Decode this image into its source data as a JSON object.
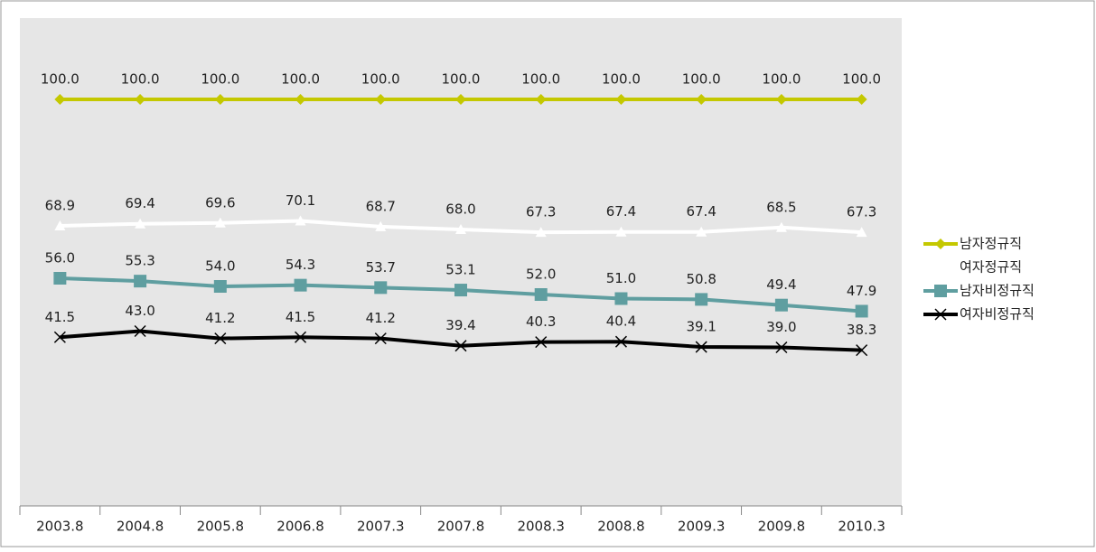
{
  "chart_data": {
    "type": "line",
    "categories": [
      "2003.8",
      "2004.8",
      "2005.8",
      "2006.8",
      "2007.3",
      "2007.8",
      "2008.3",
      "2008.8",
      "2009.3",
      "2009.8",
      "2010.3"
    ],
    "ylim": [
      0,
      120
    ],
    "series": [
      {
        "name": "남자정규직",
        "color": "#c4c800",
        "marker": "diamond",
        "values": [
          100,
          100,
          100,
          100,
          100,
          100,
          100,
          100,
          100,
          100,
          100
        ],
        "value_labels": [
          "100.0",
          "100.0",
          "100.0",
          "100.0",
          "100.0",
          "100.0",
          "100.0",
          "100.0",
          "100.0",
          "100.0",
          "100.0"
        ]
      },
      {
        "name": "여자정규직",
        "color": "#ffffff",
        "marker": "triangle",
        "values": [
          68.9,
          69.4,
          69.6,
          70.1,
          68.7,
          68,
          67.3,
          67.4,
          67.4,
          68.5,
          67.3
        ],
        "value_labels": [
          "68.9",
          "69.4",
          "69.6",
          "70.1",
          "68.7",
          "68.0",
          "67.3",
          "67.4",
          "67.4",
          "68.5",
          "67.3"
        ]
      },
      {
        "name": "남자비정규직",
        "color": "#5f9ea0",
        "marker": "square",
        "values": [
          56,
          55.3,
          54,
          54.3,
          53.7,
          53.1,
          52,
          51,
          50.8,
          49.4,
          47.9
        ],
        "value_labels": [
          "56.0",
          "55.3",
          "54.0",
          "54.3",
          "53.7",
          "53.1",
          "52.0",
          "51.0",
          "50.8",
          "49.4",
          "47.9"
        ]
      },
      {
        "name": "여자비정규직",
        "color": "#000000",
        "marker": "x",
        "values": [
          41.5,
          43,
          41.2,
          41.5,
          41.2,
          39.4,
          40.3,
          40.4,
          39.1,
          39,
          38.3
        ],
        "value_labels": [
          "41.5",
          "43.0",
          "41.2",
          "41.5",
          "41.2",
          "39.4",
          "40.3",
          "40.4",
          "39.1",
          "39.0",
          "38.3"
        ]
      }
    ]
  }
}
